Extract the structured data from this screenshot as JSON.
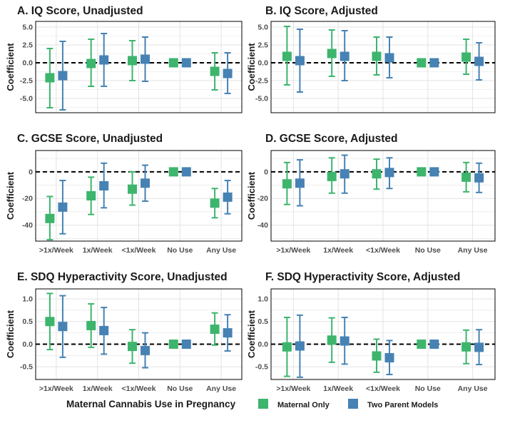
{
  "chart_data": [
    {
      "id": "A",
      "type": "scatter",
      "title": "A. IQ Score, Unadjusted",
      "ylabel": "Coefficient",
      "xlabel": "",
      "categories": [
        ">1x/Week",
        "1x/Week",
        "<1x/Week",
        "No Use",
        "Any Use"
      ],
      "show_x_labels": false,
      "ylim": [
        -7,
        5.8
      ],
      "yticks": [
        -5,
        -2.5,
        0,
        2.5,
        5
      ],
      "ytick_labels": [
        "-5.0",
        "-2.5",
        "0.0",
        "2.5",
        "5.0"
      ],
      "series": [
        {
          "name": "Maternal Only",
          "estimate": [
            -2.1,
            -0.1,
            0.3,
            0.0,
            -1.2
          ],
          "lower": [
            -6.3,
            -3.3,
            -2.5,
            0.0,
            -3.8
          ],
          "upper": [
            2.0,
            3.3,
            3.1,
            0.0,
            1.4
          ]
        },
        {
          "name": "Two Parent Models",
          "estimate": [
            -1.8,
            0.4,
            0.5,
            0.0,
            -1.5
          ],
          "lower": [
            -6.6,
            -3.3,
            -2.6,
            0.0,
            -4.3
          ],
          "upper": [
            3.0,
            4.1,
            3.6,
            0.0,
            1.4
          ]
        }
      ]
    },
    {
      "id": "B",
      "type": "scatter",
      "title": "B. IQ Score, Adjusted",
      "ylabel": "Coefficient",
      "xlabel": "",
      "categories": [
        ">1x/Week",
        "1x/Week",
        "<1x/Week",
        "No Use",
        "Any Use"
      ],
      "show_x_labels": false,
      "ylim": [
        -7,
        5.8
      ],
      "yticks": [
        -5,
        -2.5,
        0,
        2.5,
        5
      ],
      "ytick_labels": [
        "-5.0",
        "-2.5",
        "0.0",
        "2.5",
        "5.0"
      ],
      "series": [
        {
          "name": "Maternal Only",
          "estimate": [
            0.9,
            1.3,
            0.9,
            0.0,
            0.8
          ],
          "lower": [
            -3.1,
            -1.9,
            -1.7,
            0.0,
            -1.6
          ],
          "upper": [
            5.1,
            4.6,
            3.6,
            0.0,
            3.3
          ]
        },
        {
          "name": "Two Parent Models",
          "estimate": [
            0.3,
            0.9,
            0.7,
            0.0,
            0.2
          ],
          "lower": [
            -4.1,
            -2.5,
            -2.1,
            0.0,
            -2.4
          ],
          "upper": [
            4.7,
            4.5,
            3.6,
            0.0,
            2.8
          ]
        }
      ]
    },
    {
      "id": "C",
      "type": "scatter",
      "title": "C. GCSE Score, Unadjusted",
      "ylabel": "Coefficient",
      "xlabel": "",
      "categories": [
        ">1x/Week",
        "1x/Week",
        "<1x/Week",
        "No Use",
        "Any Use"
      ],
      "show_x_labels": true,
      "ylim": [
        -52,
        16
      ],
      "yticks": [
        -40,
        -20,
        0
      ],
      "ytick_labels": [
        "-40",
        "-20",
        "0"
      ],
      "series": [
        {
          "name": "Maternal Only",
          "estimate": [
            -35,
            -18,
            -13,
            0,
            -23.5
          ],
          "lower": [
            -51,
            -32,
            -25,
            0,
            -34.5
          ],
          "upper": [
            -18.5,
            -4,
            0,
            0,
            -12.5
          ]
        },
        {
          "name": "Two Parent Models",
          "estimate": [
            -26.5,
            -10.5,
            -8.5,
            0,
            -19
          ],
          "lower": [
            -46.5,
            -27,
            -22,
            0,
            -31.5
          ],
          "upper": [
            -6.5,
            6.5,
            5,
            0,
            -6.5
          ]
        }
      ]
    },
    {
      "id": "D",
      "type": "scatter",
      "title": "D. GCSE Score, Adjusted",
      "ylabel": "Coefficient",
      "xlabel": "",
      "categories": [
        ">1x/Week",
        "1x/Week",
        "<1x/Week",
        "No Use",
        "Any Use"
      ],
      "show_x_labels": true,
      "ylim": [
        -52,
        16
      ],
      "yticks": [
        -40,
        -20,
        0
      ],
      "ytick_labels": [
        "-40",
        "-20",
        "0"
      ],
      "series": [
        {
          "name": "Maternal Only",
          "estimate": [
            -9,
            -3.5,
            -1.5,
            0,
            -4
          ],
          "lower": [
            -24.5,
            -16,
            -13,
            0,
            -15
          ],
          "upper": [
            7,
            10.5,
            9.5,
            0,
            7
          ]
        },
        {
          "name": "Two Parent Models",
          "estimate": [
            -8.5,
            -1.5,
            -0.5,
            0,
            -4.5
          ],
          "lower": [
            -25.5,
            -16,
            -12.5,
            0,
            -15.5
          ],
          "upper": [
            9,
            12.5,
            10.5,
            0,
            6.5
          ]
        }
      ]
    },
    {
      "id": "E",
      "type": "scatter",
      "title": "E. SDQ Hyperactivity Score, Unadjusted",
      "ylabel": "Coefficient",
      "xlabel": "",
      "categories": [
        ">1x/Week",
        "1x/Week",
        "<1x/Week",
        "No Use",
        "Any Use"
      ],
      "show_x_labels": true,
      "ylim": [
        -0.78,
        1.22
      ],
      "yticks": [
        -0.5,
        0,
        0.5,
        1
      ],
      "ytick_labels": [
        "-0.5",
        "0.0",
        "0.5",
        "1.0"
      ],
      "series": [
        {
          "name": "Maternal Only",
          "estimate": [
            0.5,
            0.41,
            -0.05,
            0.0,
            0.33
          ],
          "lower": [
            -0.12,
            -0.07,
            -0.42,
            0.0,
            -0.02
          ],
          "upper": [
            1.12,
            0.89,
            0.32,
            0.0,
            0.69
          ]
        },
        {
          "name": "Two Parent Models",
          "estimate": [
            0.39,
            0.3,
            -0.14,
            0.0,
            0.25
          ],
          "lower": [
            -0.29,
            -0.22,
            -0.52,
            0.0,
            -0.15
          ],
          "upper": [
            1.07,
            0.81,
            0.25,
            0.0,
            0.65
          ]
        }
      ]
    },
    {
      "id": "F",
      "type": "scatter",
      "title": "F. SDQ Hyperactivity Score, Adjusted",
      "ylabel": "Coefficient",
      "xlabel": "",
      "categories": [
        ">1x/Week",
        "1x/Week",
        "<1x/Week",
        "No Use",
        "Any Use"
      ],
      "show_x_labels": true,
      "ylim": [
        -0.78,
        1.22
      ],
      "yticks": [
        -0.5,
        0,
        0.5,
        1
      ],
      "ytick_labels": [
        "-0.5",
        "0.0",
        "0.5",
        "1.0"
      ],
      "series": [
        {
          "name": "Maternal Only",
          "estimate": [
            -0.06,
            0.09,
            -0.26,
            0.0,
            -0.06
          ],
          "lower": [
            -0.71,
            -0.4,
            -0.62,
            0.0,
            -0.43
          ],
          "upper": [
            0.59,
            0.58,
            0.11,
            0.0,
            0.31
          ]
        },
        {
          "name": "Two Parent Models",
          "estimate": [
            -0.04,
            0.07,
            -0.3,
            0.0,
            -0.07
          ],
          "lower": [
            -0.73,
            -0.44,
            -0.67,
            0.0,
            -0.45
          ],
          "upper": [
            0.64,
            0.59,
            0.08,
            0.0,
            0.32
          ]
        }
      ]
    }
  ],
  "legend": {
    "title": "Maternal Cannabis Use in Pregnancy",
    "items": [
      {
        "label": "Maternal Only",
        "color": "#3DB56D"
      },
      {
        "label": "Two Parent Models",
        "color": "#4682B4"
      }
    ]
  },
  "colors": {
    "maternal": "#3DB56D",
    "two_parent": "#4682B4",
    "grid": "#E3E3E3",
    "zero_line": "#000000"
  }
}
